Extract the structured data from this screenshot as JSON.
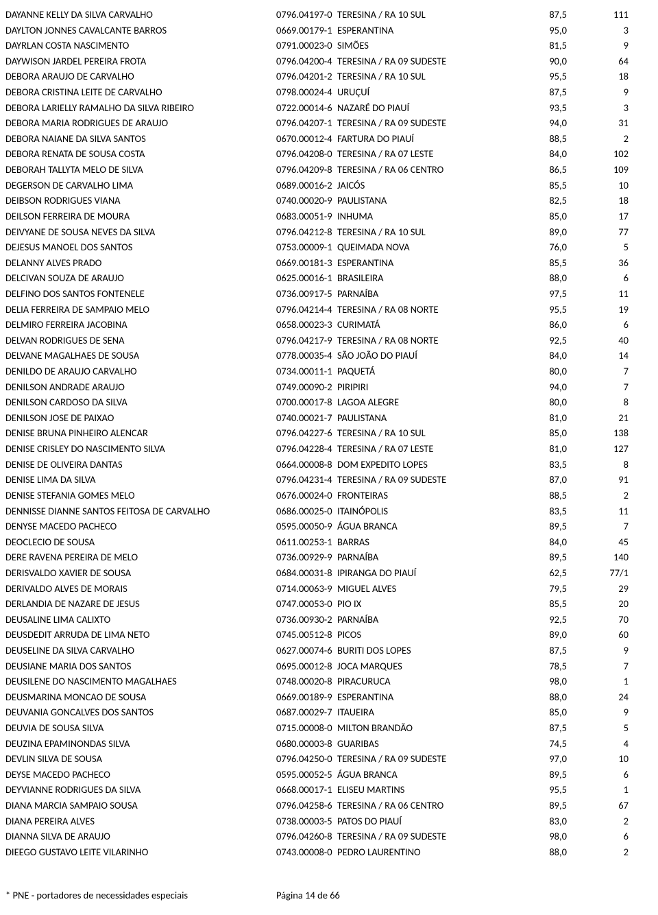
{
  "rows": [
    {
      "name": "DAYANNE KELLY DA SILVA CARVALHO",
      "code": "0796.04197-0",
      "loc": "TERESINA / RA 10 SUL",
      "score": "87,5",
      "rank": "111"
    },
    {
      "name": "DAYLTON JONNES CAVALCANTE BARROS",
      "code": "0669.00179-1",
      "loc": "ESPERANTINA",
      "score": "95,0",
      "rank": "3"
    },
    {
      "name": "DAYRLAN COSTA NASCIMENTO",
      "code": "0791.00023-0",
      "loc": "SIMÕES",
      "score": "81,5",
      "rank": "9"
    },
    {
      "name": "DAYWISON JARDEL PEREIRA FROTA",
      "code": "0796.04200-4",
      "loc": "TERESINA / RA 09 SUDESTE",
      "score": "90,0",
      "rank": "64"
    },
    {
      "name": "DEBORA ARAUJO DE CARVALHO",
      "code": "0796.04201-2",
      "loc": "TERESINA / RA 10 SUL",
      "score": "95,5",
      "rank": "18"
    },
    {
      "name": "DEBORA CRISTINA LEITE DE CARVALHO",
      "code": "0798.00024-4",
      "loc": "URUÇUÍ",
      "score": "87,5",
      "rank": "9"
    },
    {
      "name": "DEBORA LARIELLY RAMALHO DA SILVA RIBEIRO",
      "code": "0722.00014-6",
      "loc": "NAZARÉ DO PIAUÍ",
      "score": "93,5",
      "rank": "3"
    },
    {
      "name": "DEBORA MARIA RODRIGUES DE ARAUJO",
      "code": "0796.04207-1",
      "loc": "TERESINA / RA 09 SUDESTE",
      "score": "94,0",
      "rank": "31"
    },
    {
      "name": "DEBORA NAIANE DA SILVA SANTOS",
      "code": "0670.00012-4",
      "loc": "FARTURA DO PIAUÍ",
      "score": "88,5",
      "rank": "2"
    },
    {
      "name": "DEBORA RENATA DE SOUSA COSTA",
      "code": "0796.04208-0",
      "loc": "TERESINA / RA 07 LESTE",
      "score": "84,0",
      "rank": "102"
    },
    {
      "name": "DEBORAH TALLYTA MELO DE SILVA",
      "code": "0796.04209-8",
      "loc": "TERESINA / RA 06 CENTRO",
      "score": "86,5",
      "rank": "109"
    },
    {
      "name": "DEGERSON DE CARVALHO LIMA",
      "code": "0689.00016-2",
      "loc": "JAICÓS",
      "score": "85,5",
      "rank": "10"
    },
    {
      "name": "DEIBSON RODRIGUES VIANA",
      "code": "0740.00020-9",
      "loc": "PAULISTANA",
      "score": "82,5",
      "rank": "18"
    },
    {
      "name": "DEILSON FERREIRA DE MOURA",
      "code": "0683.00051-9",
      "loc": "INHUMA",
      "score": "85,0",
      "rank": "17"
    },
    {
      "name": "DEIVYANE DE SOUSA NEVES DA SILVA",
      "code": "0796.04212-8",
      "loc": "TERESINA / RA 10 SUL",
      "score": "89,0",
      "rank": "77"
    },
    {
      "name": "DEJESUS MANOEL DOS SANTOS",
      "code": "0753.00009-1",
      "loc": "QUEIMADA NOVA",
      "score": "76,0",
      "rank": "5"
    },
    {
      "name": "DELANNY ALVES PRADO",
      "code": "0669.00181-3",
      "loc": "ESPERANTINA",
      "score": "85,5",
      "rank": "36"
    },
    {
      "name": "DELCIVAN SOUZA DE ARAUJO",
      "code": "0625.00016-1",
      "loc": "BRASILEIRA",
      "score": "88,0",
      "rank": "6"
    },
    {
      "name": "DELFINO DOS SANTOS FONTENELE",
      "code": "0736.00917-5",
      "loc": "PARNAÍBA",
      "score": "97,5",
      "rank": "11"
    },
    {
      "name": "DELIA FERREIRA DE SAMPAIO MELO",
      "code": "0796.04214-4",
      "loc": "TERESINA / RA 08 NORTE",
      "score": "95,5",
      "rank": "19"
    },
    {
      "name": "DELMIRO FERREIRA JACOBINA",
      "code": "0658.00023-3",
      "loc": "CURIMATÁ",
      "score": "86,0",
      "rank": "6"
    },
    {
      "name": "DELVAN RODRIGUES DE SENA",
      "code": "0796.04217-9",
      "loc": "TERESINA / RA 08 NORTE",
      "score": "92,5",
      "rank": "40"
    },
    {
      "name": "DELVANE MAGALHAES DE SOUSA",
      "code": "0778.00035-4",
      "loc": "SÃO JOÃO DO PIAUÍ",
      "score": "84,0",
      "rank": "14"
    },
    {
      "name": "DENILDO DE ARAUJO CARVALHO",
      "code": "0734.00011-1",
      "loc": "PAQUETÁ",
      "score": "80,0",
      "rank": "7"
    },
    {
      "name": "DENILSON ANDRADE ARAUJO",
      "code": "0749.00090-2",
      "loc": "PIRIPIRI",
      "score": "94,0",
      "rank": "7"
    },
    {
      "name": "DENILSON CARDOSO DA SILVA",
      "code": "0700.00017-8",
      "loc": "LAGOA ALEGRE",
      "score": "80,0",
      "rank": "8"
    },
    {
      "name": "DENILSON JOSE DE PAIXAO",
      "code": "0740.00021-7",
      "loc": "PAULISTANA",
      "score": "81,0",
      "rank": "21"
    },
    {
      "name": "DENISE BRUNA PINHEIRO ALENCAR",
      "code": "0796.04227-6",
      "loc": "TERESINA / RA 10 SUL",
      "score": "85,0",
      "rank": "138"
    },
    {
      "name": "DENISE CRISLEY DO NASCIMENTO SILVA",
      "code": "0796.04228-4",
      "loc": "TERESINA / RA 07 LESTE",
      "score": "81,0",
      "rank": "127"
    },
    {
      "name": "DENISE DE OLIVEIRA DANTAS",
      "code": "0664.00008-8",
      "loc": "DOM EXPEDITO LOPES",
      "score": "83,5",
      "rank": "8"
    },
    {
      "name": "DENISE LIMA DA SILVA",
      "code": "0796.04231-4",
      "loc": "TERESINA / RA 09 SUDESTE",
      "score": "87,0",
      "rank": "91"
    },
    {
      "name": "DENISE STEFANIA GOMES MELO",
      "code": "0676.00024-0",
      "loc": "FRONTEIRAS",
      "score": "88,5",
      "rank": "2"
    },
    {
      "name": "DENNISSE DIANNE SANTOS FEITOSA DE CARVALHO",
      "code": "0686.00025-0",
      "loc": "ITAINÓPOLIS",
      "score": "83,5",
      "rank": "11"
    },
    {
      "name": "DENYSE MACEDO PACHECO",
      "code": "0595.00050-9",
      "loc": "ÁGUA BRANCA",
      "score": "89,5",
      "rank": "7"
    },
    {
      "name": "DEOCLECIO DE SOUSA",
      "code": "0611.00253-1",
      "loc": "BARRAS",
      "score": "84,0",
      "rank": "45"
    },
    {
      "name": "DERE RAVENA PEREIRA DE MELO",
      "code": "0736.00929-9",
      "loc": "PARNAÍBA",
      "score": "89,5",
      "rank": "140"
    },
    {
      "name": "DERISVALDO XAVIER DE SOUSA",
      "code": "0684.00031-8",
      "loc": "IPIRANGA DO PIAUÍ",
      "score": "62,5",
      "rank": "77/1"
    },
    {
      "name": "DERIVALDO ALVES DE MORAIS",
      "code": "0714.00063-9",
      "loc": "MIGUEL ALVES",
      "score": "79,5",
      "rank": "29"
    },
    {
      "name": "DERLANDIA DE NAZARE DE JESUS",
      "code": "0747.00053-0",
      "loc": "PIO IX",
      "score": "85,5",
      "rank": "20"
    },
    {
      "name": "DEUSALINE LIMA CALIXTO",
      "code": "0736.00930-2",
      "loc": "PARNAÍBA",
      "score": "92,5",
      "rank": "70"
    },
    {
      "name": "DEUSDEDIT ARRUDA DE LIMA NETO",
      "code": "0745.00512-8",
      "loc": "PICOS",
      "score": "89,0",
      "rank": "60"
    },
    {
      "name": "DEUSELINE DA SILVA CARVALHO",
      "code": "0627.00074-6",
      "loc": "BURITI DOS LOPES",
      "score": "87,5",
      "rank": "9"
    },
    {
      "name": "DEUSIANE MARIA DOS SANTOS",
      "code": "0695.00012-8",
      "loc": "JOCA MARQUES",
      "score": "78,5",
      "rank": "7"
    },
    {
      "name": "DEUSILENE DO NASCIMENTO MAGALHAES",
      "code": "0748.00020-8",
      "loc": "PIRACURUCA",
      "score": "98,0",
      "rank": "1"
    },
    {
      "name": "DEUSMARINA MONCAO DE SOUSA",
      "code": "0669.00189-9",
      "loc": "ESPERANTINA",
      "score": "88,0",
      "rank": "24"
    },
    {
      "name": "DEUVANIA GONCALVES DOS SANTOS",
      "code": "0687.00029-7",
      "loc": "ITAUEIRA",
      "score": "85,0",
      "rank": "9"
    },
    {
      "name": "DEUVIA DE SOUSA SILVA",
      "code": "0715.00008-0",
      "loc": "MILTON BRANDÃO",
      "score": "87,5",
      "rank": "5"
    },
    {
      "name": "DEUZINA EPAMINONDAS SILVA",
      "code": "0680.00003-8",
      "loc": "GUARIBAS",
      "score": "74,5",
      "rank": "4"
    },
    {
      "name": "DEVLIN SILVA DE SOUSA",
      "code": "0796.04250-0",
      "loc": "TERESINA / RA 09 SUDESTE",
      "score": "97,0",
      "rank": "10"
    },
    {
      "name": "DEYSE MACEDO PACHECO",
      "code": "0595.00052-5",
      "loc": "ÁGUA BRANCA",
      "score": "89,5",
      "rank": "6"
    },
    {
      "name": "DEYVIANNE RODRIGUES DA SILVA",
      "code": "0668.00017-1",
      "loc": "ELISEU MARTINS",
      "score": "95,5",
      "rank": "1"
    },
    {
      "name": "DIANA MARCIA SAMPAIO SOUSA",
      "code": "0796.04258-6",
      "loc": "TERESINA / RA 06 CENTRO",
      "score": "89,5",
      "rank": "67"
    },
    {
      "name": "DIANA PEREIRA ALVES",
      "code": "0738.00003-5",
      "loc": "PATOS DO PIAUÍ",
      "score": "83,0",
      "rank": "2"
    },
    {
      "name": "DIANNA SILVA DE ARAUJO",
      "code": "0796.04260-8",
      "loc": "TERESINA / RA 09 SUDESTE",
      "score": "98,0",
      "rank": "6"
    },
    {
      "name": "DIEEGO GUSTAVO LEITE VILARINHO",
      "code": "0743.00008-0",
      "loc": "PEDRO LAURENTINO",
      "score": "88,0",
      "rank": "2"
    }
  ],
  "footer": {
    "note": "* PNE - portadores de necessidades especiais",
    "page": "Página 14 de 66"
  }
}
